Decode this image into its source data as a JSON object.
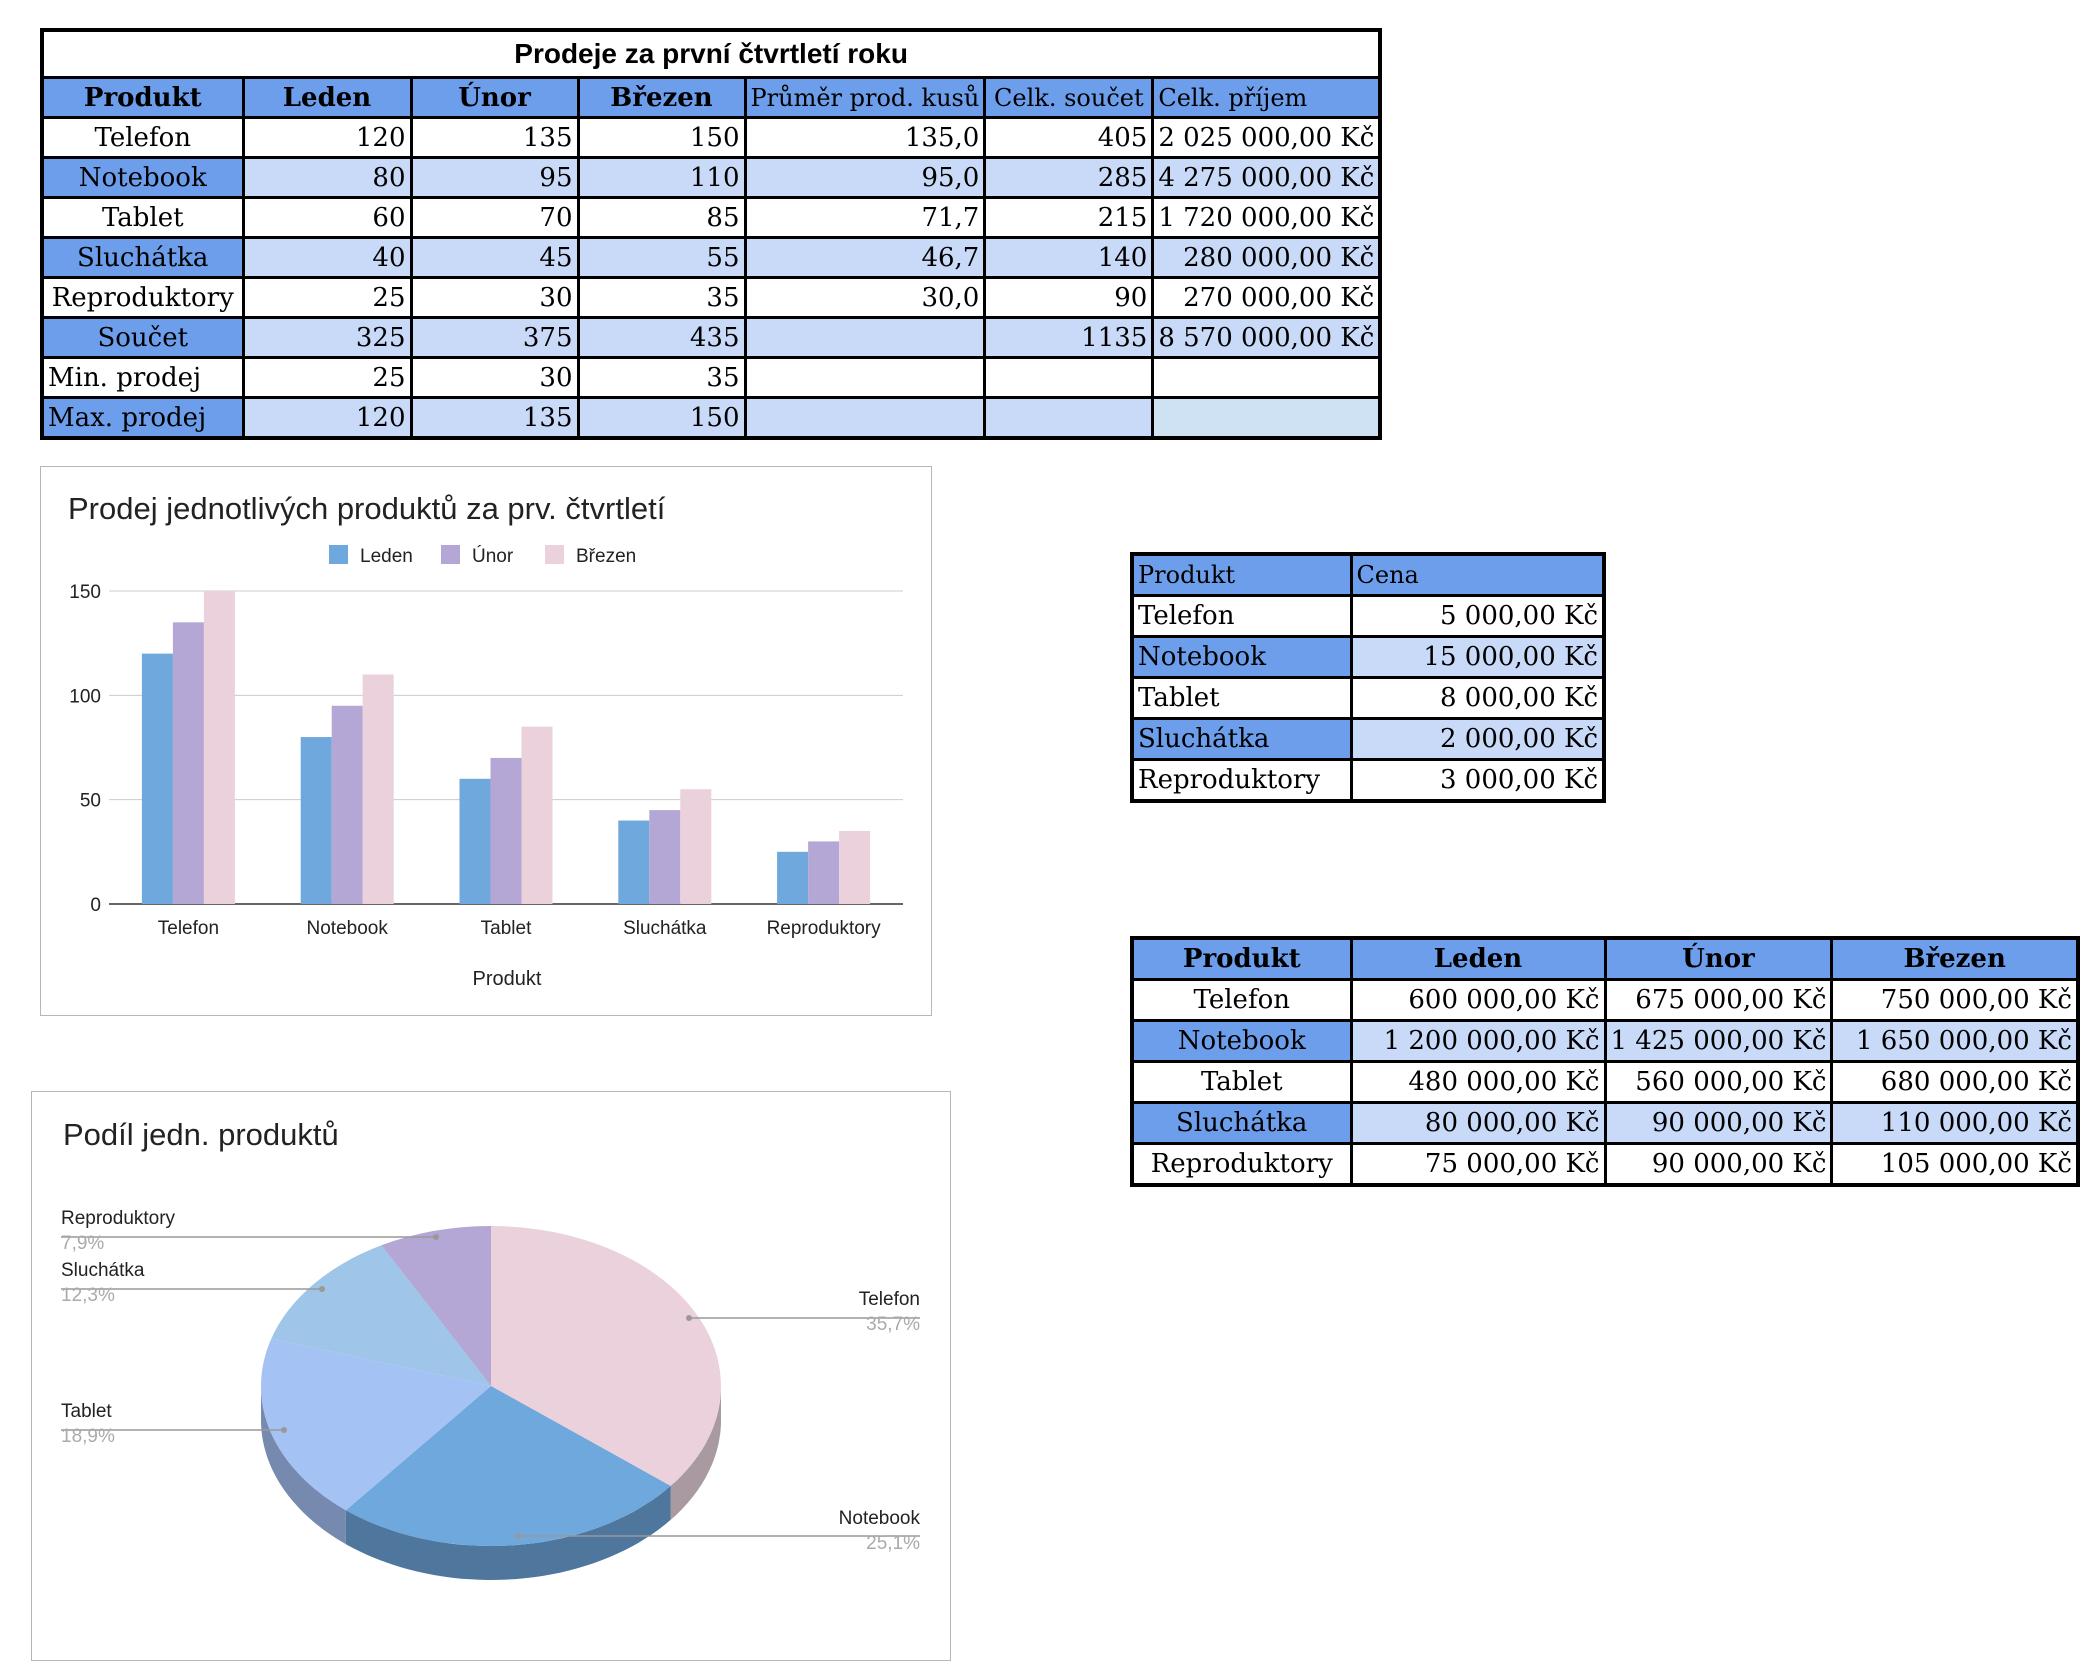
{
  "main_table": {
    "title": "Prodeje za první čtvrtletí roku",
    "headers": [
      "Produkt",
      "Leden",
      "Únor",
      "Březen",
      "Průměr prod. kusů",
      "Celk. součet",
      "Celk. příjem"
    ],
    "rows": [
      [
        "Telefon",
        "120",
        "135",
        "150",
        "135,0",
        "405",
        "2 025 000,00 Kč"
      ],
      [
        "Notebook",
        "80",
        "95",
        "110",
        "95,0",
        "285",
        "4 275 000,00 Kč"
      ],
      [
        "Tablet",
        "60",
        "70",
        "85",
        "71,7",
        "215",
        "1 720 000,00 Kč"
      ],
      [
        "Sluchátka",
        "40",
        "45",
        "55",
        "46,7",
        "140",
        "280 000,00 Kč"
      ],
      [
        "Reproduktory",
        "25",
        "30",
        "35",
        "30,0",
        "90",
        "270 000,00 Kč"
      ],
      [
        "Součet",
        "325",
        "375",
        "435",
        "",
        "1135",
        "8 570 000,00 Kč"
      ],
      [
        "Min. prodej",
        "25",
        "30",
        "35",
        "",
        "",
        ""
      ],
      [
        "Max. prodej",
        "120",
        "135",
        "150",
        "",
        "",
        ""
      ]
    ]
  },
  "price_table": {
    "headers": [
      "Produkt",
      "Cena"
    ],
    "rows": [
      [
        "Telefon",
        "5 000,00 Kč"
      ],
      [
        "Notebook",
        "15 000,00 Kč"
      ],
      [
        "Tablet",
        "8 000,00 Kč"
      ],
      [
        "Sluchátka",
        "2 000,00 Kč"
      ],
      [
        "Reproduktory",
        "3 000,00 Kč"
      ]
    ]
  },
  "monthly_table": {
    "headers": [
      "Produkt",
      "Leden",
      "Únor",
      "Březen"
    ],
    "rows": [
      [
        "Telefon",
        "600 000,00 Kč",
        "675 000,00 Kč",
        "750 000,00 Kč"
      ],
      [
        "Notebook",
        "1 200 000,00 Kč",
        "1 425 000,00 Kč",
        "1 650 000,00 Kč"
      ],
      [
        "Tablet",
        "480 000,00 Kč",
        "560 000,00 Kč",
        "680 000,00 Kč"
      ],
      [
        "Sluchátka",
        "80 000,00 Kč",
        "90 000,00 Kč",
        "110 000,00 Kč"
      ],
      [
        "Reproduktory",
        "75 000,00 Kč",
        "90 000,00 Kč",
        "105 000,00 Kč"
      ]
    ]
  },
  "chart_data": [
    {
      "type": "bar",
      "title": "Prodej jednotlivých produktů za prv. čtvrtletí",
      "xlabel": "Produkt",
      "ylabel": "",
      "categories": [
        "Telefon",
        "Notebook",
        "Tablet",
        "Sluchátka",
        "Reproduktory"
      ],
      "series": [
        {
          "name": "Leden",
          "values": [
            120,
            80,
            60,
            40,
            25
          ],
          "color": "#6fa8dc"
        },
        {
          "name": "Únor",
          "values": [
            135,
            95,
            70,
            45,
            30
          ],
          "color": "#b4a7d6"
        },
        {
          "name": "Březen",
          "values": [
            150,
            110,
            85,
            55,
            35
          ],
          "color": "#ead1dc"
        }
      ],
      "ylim": [
        0,
        150
      ],
      "yticks": [
        "0",
        "50",
        "100",
        "150"
      ],
      "grid": true,
      "legend": "top-center"
    },
    {
      "type": "pie",
      "title": "Podíl jedn. produktů",
      "labels": [
        "Telefon",
        "Notebook",
        "Tablet",
        "Sluchátka",
        "Reproduktory"
      ],
      "values": [
        35.7,
        25.1,
        18.9,
        12.3,
        7.9
      ],
      "percent_labels": [
        "35,7%",
        "25,1%",
        "18,9%",
        "12,3%",
        "7,9%"
      ],
      "colors": [
        "#ead1dc",
        "#6fa8dc",
        "#a4c2f4",
        "#9fc5e8",
        "#b4a7d6"
      ],
      "side_colors": [
        "#a89aa0",
        "#4f769c",
        "#7689af",
        "#7288a7",
        "#8277a1"
      ],
      "legend": "labeled"
    }
  ]
}
